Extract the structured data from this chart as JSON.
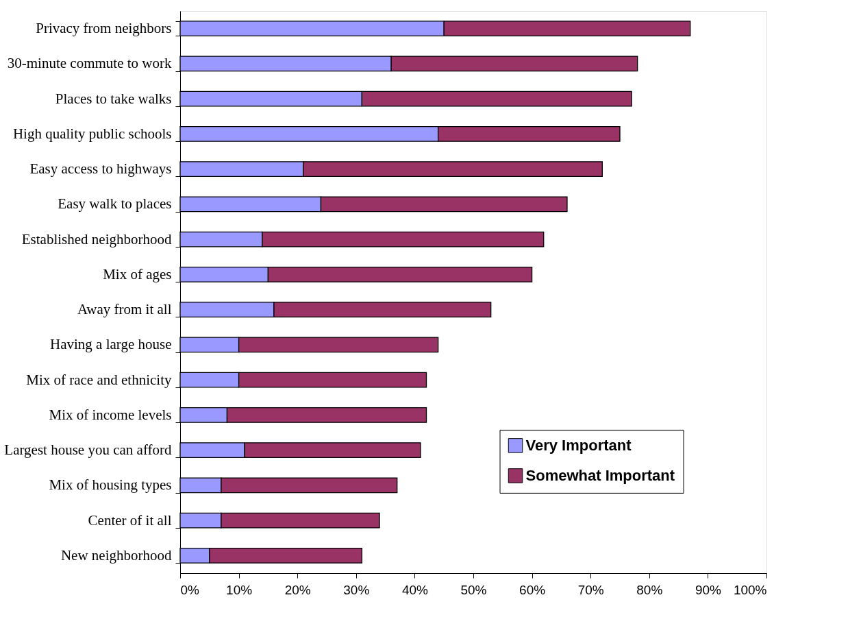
{
  "chart_data": {
    "type": "bar",
    "orientation": "horizontal",
    "stacked": true,
    "categories": [
      "Privacy from neighbors",
      "30-minute commute to work",
      "Places to take walks",
      "High quality public schools",
      "Easy access to highways",
      "Easy walk to places",
      "Established neighborhood",
      "Mix of ages",
      "Away from it all",
      "Having a large house",
      "Mix of race and ethnicity",
      "Mix of income levels",
      "Largest house you can afford",
      "Mix of housing types",
      "Center of it all",
      "New neighborhood"
    ],
    "series": [
      {
        "name": "Very Important",
        "color": "#9999ff",
        "values": [
          45,
          36,
          31,
          44,
          21,
          24,
          14,
          15,
          16,
          10,
          10,
          8,
          11,
          7,
          7,
          5
        ]
      },
      {
        "name": "Somewhat Important",
        "color": "#993366",
        "values": [
          42,
          42,
          46,
          31,
          51,
          42,
          48,
          45,
          37,
          34,
          32,
          34,
          30,
          30,
          27,
          26
        ]
      }
    ],
    "xlim": [
      0,
      100
    ],
    "xticks": [
      {
        "value": 0,
        "label": "0%"
      },
      {
        "value": 10,
        "label": "10%"
      },
      {
        "value": 20,
        "label": "20%"
      },
      {
        "value": 30,
        "label": "30%"
      },
      {
        "value": 40,
        "label": "40%"
      },
      {
        "value": 50,
        "label": "50%"
      },
      {
        "value": 60,
        "label": "60%"
      },
      {
        "value": 70,
        "label": "70%"
      },
      {
        "value": 80,
        "label": "80%"
      },
      {
        "value": 90,
        "label": "90%"
      },
      {
        "value": 100,
        "label": "100%"
      }
    ],
    "grid": false,
    "legend": "bottom right"
  }
}
